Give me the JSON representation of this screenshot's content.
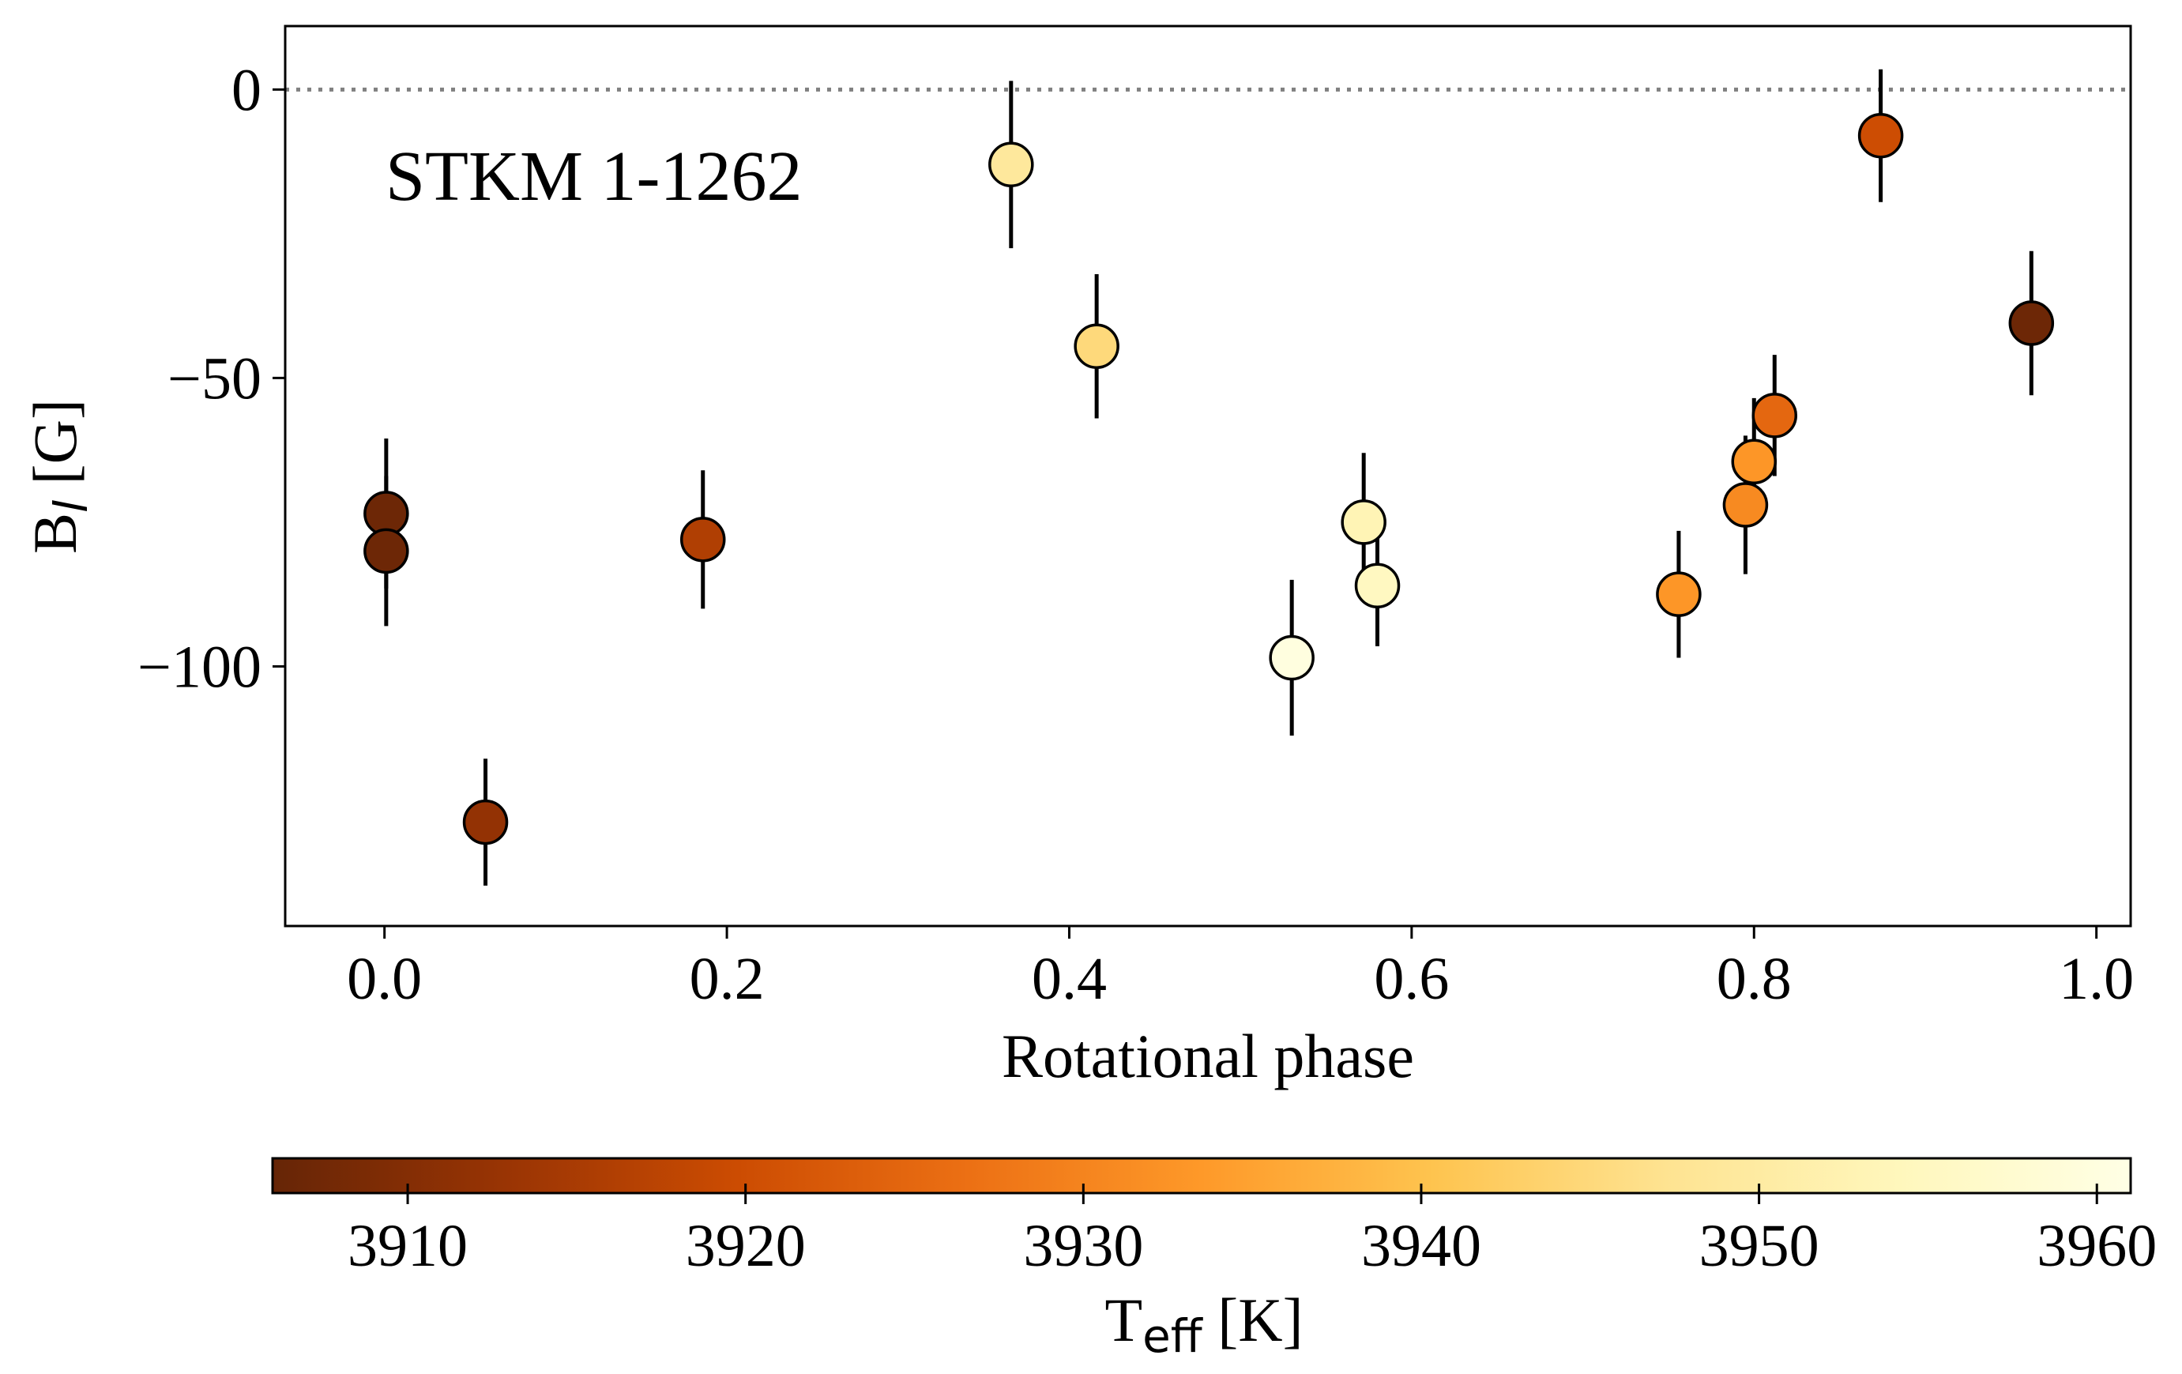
{
  "chart_data": {
    "type": "scatter",
    "annotation": "STKM 1-1262",
    "xlabel": "Rotational phase",
    "ylabel": {
      "main": "B",
      "sub": "l",
      "unit": "[G]"
    },
    "xlim": [
      -0.058,
      1.02
    ],
    "ylim": [
      -145,
      11
    ],
    "xticks": [
      0.0,
      0.2,
      0.4,
      0.6,
      0.8,
      1.0
    ],
    "xtick_labels": [
      "0.0",
      "0.2",
      "0.4",
      "0.6",
      "0.8",
      "1.0"
    ],
    "yticks": [
      0,
      -50,
      -100
    ],
    "ytick_labels": [
      "0",
      "−50",
      "−100"
    ],
    "reference_line": {
      "y": 0,
      "style": "dotted",
      "color": "#808080"
    },
    "grid": false,
    "colorbar": {
      "label": {
        "main": "T",
        "sub": "eff",
        "unit": "[K]"
      },
      "range": [
        3906,
        3961
      ],
      "ticks": [
        3910,
        3920,
        3930,
        3940,
        3950,
        3960
      ],
      "tick_labels": [
        "3910",
        "3920",
        "3930",
        "3940",
        "3950",
        "3960"
      ],
      "colormap": "YlOrBr",
      "colors": [
        "#662506",
        "#993404",
        "#cc4c02",
        "#ec7014",
        "#fe9929",
        "#fec44f",
        "#fee391",
        "#fff7bc",
        "#ffffe5"
      ]
    },
    "points": [
      {
        "x": 0.001,
        "y": -73.5,
        "err": 13,
        "teff": 3907
      },
      {
        "x": 0.001,
        "y": -80,
        "err": 13,
        "teff": 3907
      },
      {
        "x": 0.059,
        "y": -127,
        "err": 11,
        "teff": 3912
      },
      {
        "x": 0.186,
        "y": -78,
        "err": 12,
        "teff": 3916
      },
      {
        "x": 0.366,
        "y": -13,
        "err": 14.5,
        "teff": 3949
      },
      {
        "x": 0.416,
        "y": -44.5,
        "err": 12.5,
        "teff": 3945
      },
      {
        "x": 0.53,
        "y": -98.5,
        "err": 13.5,
        "teff": 3960
      },
      {
        "x": 0.572,
        "y": -75,
        "err": 12,
        "teff": 3953
      },
      {
        "x": 0.58,
        "y": -86,
        "err": 10.5,
        "teff": 3955
      },
      {
        "x": 0.756,
        "y": -87.5,
        "err": 11,
        "teff": 3933
      },
      {
        "x": 0.795,
        "y": -72,
        "err": 12,
        "teff": 3931
      },
      {
        "x": 0.8,
        "y": -64.5,
        "err": 11,
        "teff": 3933
      },
      {
        "x": 0.812,
        "y": -56.5,
        "err": 10.5,
        "teff": 3925
      },
      {
        "x": 0.874,
        "y": -8,
        "err": 11.5,
        "teff": 3920
      },
      {
        "x": 0.962,
        "y": -40.5,
        "err": 12.5,
        "teff": 3907
      }
    ]
  }
}
